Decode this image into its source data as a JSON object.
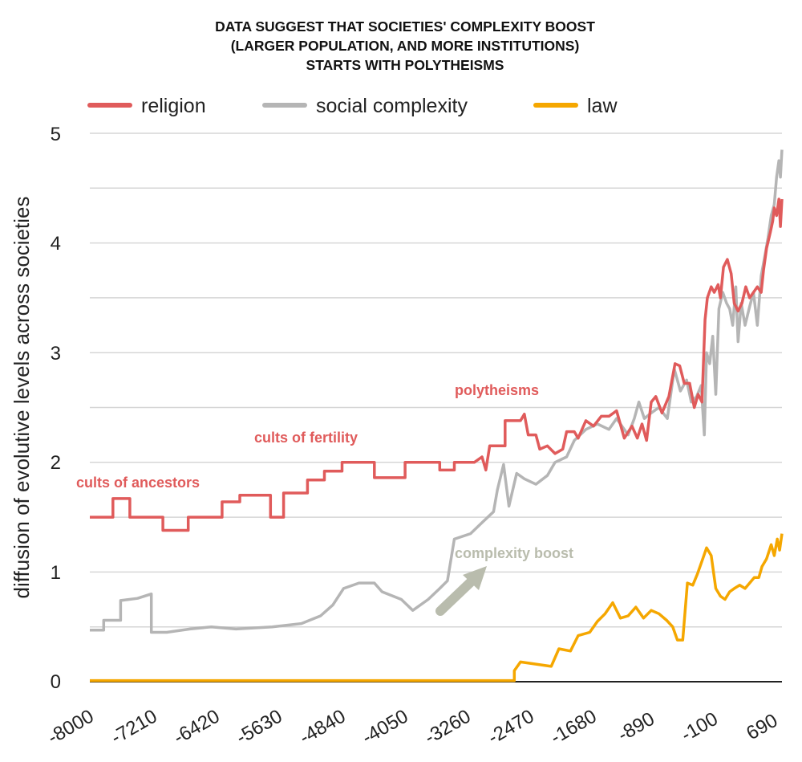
{
  "chart_data": {
    "type": "line",
    "title_lines": [
      "DATA SUGGEST THAT SOCIETIES' COMPLEXITY BOOST",
      "(LARGER POPULATION, AND MORE INSTITUTIONS)",
      "STARTS WITH POLYTHEISMS"
    ],
    "ylabel": "diffusion of evolutive levels across societies",
    "xlabel": "",
    "xlim": [
      -8000,
      1000
    ],
    "ylim": [
      0,
      5
    ],
    "yticks": [
      "0",
      "1",
      "2",
      "3",
      "4",
      "5"
    ],
    "xticks": [
      -8000,
      -7210,
      -6420,
      -5630,
      -4840,
      -4050,
      -3260,
      -2470,
      -1680,
      -890,
      -100,
      690
    ],
    "xtick_labels": [
      "-8000",
      "-7210",
      "-6420",
      "-5630",
      "-4840",
      "-4050",
      "-3260",
      "-2470",
      "-1680",
      "-890",
      "-100",
      "690"
    ],
    "grid": true,
    "legend_position": "top",
    "series": [
      {
        "name": "religion",
        "color": "#e05b5b",
        "points": [
          [
            -8000,
            1.5
          ],
          [
            -7700,
            1.5
          ],
          [
            -7700,
            1.67
          ],
          [
            -7480,
            1.67
          ],
          [
            -7480,
            1.5
          ],
          [
            -7050,
            1.5
          ],
          [
            -7050,
            1.38
          ],
          [
            -6720,
            1.38
          ],
          [
            -6720,
            1.5
          ],
          [
            -6280,
            1.5
          ],
          [
            -6280,
            1.64
          ],
          [
            -6050,
            1.64
          ],
          [
            -6050,
            1.7
          ],
          [
            -5650,
            1.7
          ],
          [
            -5650,
            1.5
          ],
          [
            -5480,
            1.5
          ],
          [
            -5480,
            1.72
          ],
          [
            -5170,
            1.72
          ],
          [
            -5170,
            1.84
          ],
          [
            -4950,
            1.84
          ],
          [
            -4950,
            1.92
          ],
          [
            -4720,
            1.92
          ],
          [
            -4720,
            2.0
          ],
          [
            -4300,
            2.0
          ],
          [
            -4300,
            1.86
          ],
          [
            -3900,
            1.86
          ],
          [
            -3900,
            2.0
          ],
          [
            -3450,
            2.0
          ],
          [
            -3450,
            1.93
          ],
          [
            -3260,
            1.93
          ],
          [
            -3260,
            2.0
          ],
          [
            -3000,
            2.0
          ],
          [
            -2900,
            2.05
          ],
          [
            -2850,
            1.93
          ],
          [
            -2800,
            2.15
          ],
          [
            -2600,
            2.15
          ],
          [
            -2600,
            2.38
          ],
          [
            -2400,
            2.38
          ],
          [
            -2350,
            2.44
          ],
          [
            -2300,
            2.25
          ],
          [
            -2200,
            2.25
          ],
          [
            -2150,
            2.12
          ],
          [
            -2050,
            2.15
          ],
          [
            -1950,
            2.08
          ],
          [
            -1850,
            2.12
          ],
          [
            -1800,
            2.28
          ],
          [
            -1700,
            2.28
          ],
          [
            -1650,
            2.22
          ],
          [
            -1550,
            2.38
          ],
          [
            -1450,
            2.33
          ],
          [
            -1350,
            2.42
          ],
          [
            -1250,
            2.42
          ],
          [
            -1150,
            2.47
          ],
          [
            -1050,
            2.22
          ],
          [
            -950,
            2.33
          ],
          [
            -880,
            2.22
          ],
          [
            -820,
            2.35
          ],
          [
            -760,
            2.2
          ],
          [
            -700,
            2.55
          ],
          [
            -640,
            2.6
          ],
          [
            -560,
            2.45
          ],
          [
            -470,
            2.6
          ],
          [
            -390,
            2.9
          ],
          [
            -330,
            2.88
          ],
          [
            -270,
            2.72
          ],
          [
            -200,
            2.72
          ],
          [
            -140,
            2.5
          ],
          [
            -90,
            2.62
          ],
          [
            -40,
            2.55
          ],
          [
            0,
            3.3
          ],
          [
            30,
            3.5
          ],
          [
            80,
            3.6
          ],
          [
            120,
            3.55
          ],
          [
            170,
            3.62
          ],
          [
            200,
            3.5
          ],
          [
            240,
            3.78
          ],
          [
            290,
            3.85
          ],
          [
            340,
            3.72
          ],
          [
            380,
            3.45
          ],
          [
            430,
            3.38
          ],
          [
            480,
            3.45
          ],
          [
            530,
            3.6
          ],
          [
            580,
            3.5
          ],
          [
            630,
            3.55
          ],
          [
            680,
            3.6
          ],
          [
            730,
            3.55
          ],
          [
            760,
            3.75
          ],
          [
            800,
            3.95
          ],
          [
            850,
            4.1
          ],
          [
            880,
            4.2
          ],
          [
            900,
            4.32
          ],
          [
            930,
            4.25
          ],
          [
            960,
            4.4
          ],
          [
            980,
            4.15
          ],
          [
            1000,
            4.4
          ]
        ]
      },
      {
        "name": "social complexity",
        "color": "#b5b5b5",
        "points": [
          [
            -8000,
            0.47
          ],
          [
            -7820,
            0.47
          ],
          [
            -7820,
            0.56
          ],
          [
            -7600,
            0.56
          ],
          [
            -7600,
            0.74
          ],
          [
            -7380,
            0.76
          ],
          [
            -7200,
            0.8
          ],
          [
            -7200,
            0.45
          ],
          [
            -7000,
            0.45
          ],
          [
            -6700,
            0.48
          ],
          [
            -6420,
            0.5
          ],
          [
            -6100,
            0.48
          ],
          [
            -5630,
            0.5
          ],
          [
            -5250,
            0.53
          ],
          [
            -5000,
            0.6
          ],
          [
            -4840,
            0.7
          ],
          [
            -4700,
            0.85
          ],
          [
            -4500,
            0.9
          ],
          [
            -4300,
            0.9
          ],
          [
            -4200,
            0.82
          ],
          [
            -3950,
            0.75
          ],
          [
            -3800,
            0.65
          ],
          [
            -3600,
            0.75
          ],
          [
            -3450,
            0.85
          ],
          [
            -3350,
            0.92
          ],
          [
            -3260,
            1.3
          ],
          [
            -3050,
            1.35
          ],
          [
            -2900,
            1.45
          ],
          [
            -2750,
            1.55
          ],
          [
            -2700,
            1.75
          ],
          [
            -2620,
            1.98
          ],
          [
            -2550,
            1.6
          ],
          [
            -2450,
            1.9
          ],
          [
            -2350,
            1.85
          ],
          [
            -2200,
            1.8
          ],
          [
            -2050,
            1.88
          ],
          [
            -1950,
            2.0
          ],
          [
            -1800,
            2.05
          ],
          [
            -1700,
            2.2
          ],
          [
            -1550,
            2.3
          ],
          [
            -1400,
            2.35
          ],
          [
            -1250,
            2.3
          ],
          [
            -1150,
            2.4
          ],
          [
            -1000,
            2.25
          ],
          [
            -920,
            2.4
          ],
          [
            -860,
            2.55
          ],
          [
            -790,
            2.4
          ],
          [
            -700,
            2.45
          ],
          [
            -600,
            2.5
          ],
          [
            -490,
            2.4
          ],
          [
            -400,
            2.85
          ],
          [
            -320,
            2.65
          ],
          [
            -240,
            2.75
          ],
          [
            -180,
            2.55
          ],
          [
            -110,
            2.6
          ],
          [
            -50,
            2.7
          ],
          [
            -10,
            2.25
          ],
          [
            20,
            3.0
          ],
          [
            60,
            2.9
          ],
          [
            100,
            3.15
          ],
          [
            140,
            2.62
          ],
          [
            180,
            3.4
          ],
          [
            230,
            3.55
          ],
          [
            280,
            3.45
          ],
          [
            320,
            3.4
          ],
          [
            360,
            3.25
          ],
          [
            400,
            3.6
          ],
          [
            430,
            3.1
          ],
          [
            470,
            3.45
          ],
          [
            520,
            3.25
          ],
          [
            580,
            3.42
          ],
          [
            630,
            3.55
          ],
          [
            680,
            3.25
          ],
          [
            730,
            3.7
          ],
          [
            770,
            3.85
          ],
          [
            820,
            4.05
          ],
          [
            860,
            4.25
          ],
          [
            900,
            4.35
          ],
          [
            930,
            4.6
          ],
          [
            960,
            4.75
          ],
          [
            980,
            4.6
          ],
          [
            1000,
            4.85
          ]
        ]
      },
      {
        "name": "law",
        "color": "#f5a700",
        "points": [
          [
            -8000,
            0.01
          ],
          [
            -2480,
            0.01
          ],
          [
            -2480,
            0.1
          ],
          [
            -2400,
            0.18
          ],
          [
            -2200,
            0.16
          ],
          [
            -2000,
            0.14
          ],
          [
            -1900,
            0.3
          ],
          [
            -1750,
            0.28
          ],
          [
            -1650,
            0.42
          ],
          [
            -1500,
            0.45
          ],
          [
            -1400,
            0.55
          ],
          [
            -1300,
            0.62
          ],
          [
            -1200,
            0.72
          ],
          [
            -1100,
            0.58
          ],
          [
            -1000,
            0.6
          ],
          [
            -900,
            0.68
          ],
          [
            -800,
            0.58
          ],
          [
            -700,
            0.65
          ],
          [
            -600,
            0.62
          ],
          [
            -500,
            0.56
          ],
          [
            -420,
            0.5
          ],
          [
            -360,
            0.38
          ],
          [
            -290,
            0.38
          ],
          [
            -230,
            0.9
          ],
          [
            -160,
            0.88
          ],
          [
            -100,
            0.98
          ],
          [
            -40,
            1.1
          ],
          [
            20,
            1.22
          ],
          [
            80,
            1.15
          ],
          [
            140,
            0.85
          ],
          [
            200,
            0.78
          ],
          [
            260,
            0.75
          ],
          [
            320,
            0.82
          ],
          [
            380,
            0.85
          ],
          [
            450,
            0.88
          ],
          [
            520,
            0.85
          ],
          [
            580,
            0.9
          ],
          [
            640,
            0.95
          ],
          [
            700,
            0.95
          ],
          [
            740,
            1.05
          ],
          [
            800,
            1.12
          ],
          [
            860,
            1.25
          ],
          [
            900,
            1.15
          ],
          [
            940,
            1.3
          ],
          [
            970,
            1.2
          ],
          [
            1000,
            1.35
          ]
        ]
      }
    ],
    "annotations": [
      {
        "text": "cults of ancestors",
        "color": "#e05b5b"
      },
      {
        "text": "cults of fertility",
        "color": "#e05b5b"
      },
      {
        "text": "polytheisms",
        "color": "#e05b5b"
      },
      {
        "text": "complexity boost",
        "color": "#b9bcad"
      }
    ]
  }
}
